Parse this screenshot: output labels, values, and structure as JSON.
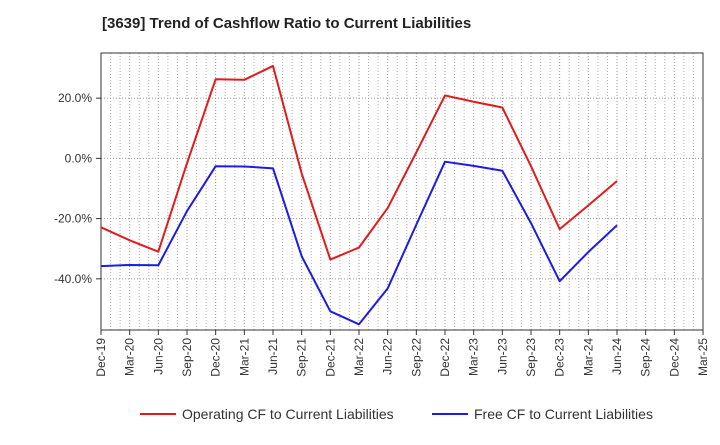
{
  "chart_data": {
    "type": "line",
    "title": "[3639]  Trend of Cashflow Ratio to Current Liabilities",
    "xlabel": "",
    "ylabel": "",
    "categories": [
      "Dec-19",
      "Mar-20",
      "Jun-20",
      "Sep-20",
      "Dec-20",
      "Mar-21",
      "Jun-21",
      "Sep-21",
      "Dec-21",
      "Mar-22",
      "Jun-22",
      "Sep-22",
      "Dec-22",
      "Mar-23",
      "Jun-23",
      "Sep-23",
      "Dec-23",
      "Mar-24",
      "Jun-24",
      "Sep-24",
      "Dec-24",
      "Mar-25"
    ],
    "ylim": [
      -57,
      35
    ],
    "yticks": [
      20,
      0,
      -20,
      -40
    ],
    "ytick_labels": [
      "20.0%",
      "0.0%",
      "-20.0%",
      "-40.0%"
    ],
    "grid": true,
    "legend_position": "bottom",
    "series": [
      {
        "name": "Operating CF to Current Liabilities",
        "color": "#e31a1c",
        "values": [
          -22.9,
          -27.2,
          -31.0,
          -1.6,
          26.3,
          26.1,
          30.7,
          -5.0,
          -33.6,
          -29.6,
          -16.5,
          2.0,
          20.9,
          18.8,
          16.9,
          -2.6,
          -23.5,
          -15.6,
          -7.5,
          null,
          null,
          null
        ]
      },
      {
        "name": "Free CF to Current Liabilities",
        "color": "#1c1ce3",
        "values": [
          -35.8,
          -35.4,
          -35.5,
          -17.5,
          -2.6,
          -2.7,
          -3.3,
          -32.5,
          -50.8,
          -55.1,
          -43.2,
          -22.0,
          -1.1,
          -2.5,
          -4.1,
          -21.5,
          -40.8,
          -31.1,
          -22.2,
          null,
          null,
          null
        ]
      }
    ]
  }
}
